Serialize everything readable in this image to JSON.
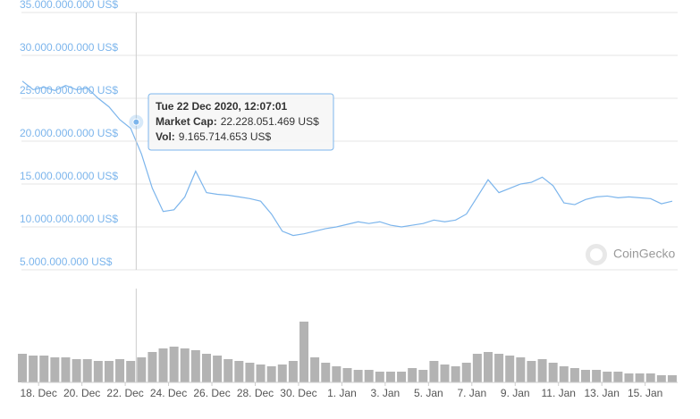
{
  "chart_data": [
    {
      "type": "line",
      "watermark": "CoinGecko",
      "xlim": [
        "2020-12-17T05:00",
        "2021-01-16T12:00"
      ],
      "ylim": [
        5000000000,
        35000000000
      ],
      "yticks": [
        {
          "value": 5000000000,
          "label": "5.000.000.000 US$"
        },
        {
          "value": 10000000000,
          "label": "10.000.000.000 US$"
        },
        {
          "value": 15000000000,
          "label": "15.000.000.000 US$"
        },
        {
          "value": 20000000000,
          "label": "20.000.000.000 US$"
        },
        {
          "value": 25000000000,
          "label": "25.000.000.000 US$"
        },
        {
          "value": 30000000000,
          "label": "30.000.000.000 US$"
        },
        {
          "value": 35000000000,
          "label": "35.000.000.000 US$"
        }
      ],
      "grid": true,
      "x": [
        "2020-12-17T06:00",
        "2020-12-17T18:00",
        "2020-12-18T06:00",
        "2020-12-18T18:00",
        "2020-12-19T06:00",
        "2020-12-19T18:00",
        "2020-12-20T06:00",
        "2020-12-20T18:00",
        "2020-12-21T06:00",
        "2020-12-21T18:00",
        "2020-12-22T06:00",
        "2020-12-22T18:00",
        "2020-12-23T06:00",
        "2020-12-23T18:00",
        "2020-12-24T06:00",
        "2020-12-24T18:00",
        "2020-12-25T06:00",
        "2020-12-25T18:00",
        "2020-12-26T06:00",
        "2020-12-26T18:00",
        "2020-12-27T06:00",
        "2020-12-27T18:00",
        "2020-12-28T06:00",
        "2020-12-28T18:00",
        "2020-12-29T06:00",
        "2020-12-29T18:00",
        "2020-12-30T06:00",
        "2020-12-30T18:00",
        "2020-12-31T06:00",
        "2020-12-31T18:00",
        "2021-01-01T06:00",
        "2021-01-01T18:00",
        "2021-01-02T06:00",
        "2021-01-02T18:00",
        "2021-01-03T06:00",
        "2021-01-03T18:00",
        "2021-01-04T06:00",
        "2021-01-04T18:00",
        "2021-01-05T06:00",
        "2021-01-05T18:00",
        "2021-01-06T06:00",
        "2021-01-06T18:00",
        "2021-01-07T06:00",
        "2021-01-07T18:00",
        "2021-01-08T06:00",
        "2021-01-08T18:00",
        "2021-01-09T06:00",
        "2021-01-09T18:00",
        "2021-01-10T06:00",
        "2021-01-10T18:00",
        "2021-01-11T06:00",
        "2021-01-11T18:00",
        "2021-01-12T06:00",
        "2021-01-12T18:00",
        "2021-01-13T06:00",
        "2021-01-13T18:00",
        "2021-01-14T06:00",
        "2021-01-14T18:00",
        "2021-01-15T06:00",
        "2021-01-15T18:00",
        "2021-01-16T06:00"
      ],
      "series": [
        {
          "color": "#7cb5ec",
          "values": [
            27000000000,
            26000000000,
            26300000000,
            25900000000,
            26500000000,
            26000000000,
            26200000000,
            25000000000,
            24000000000,
            22500000000,
            21500000000,
            18500000000,
            14500000000,
            11800000000,
            12000000000,
            13500000000,
            16500000000,
            14000000000,
            13800000000,
            13700000000,
            13500000000,
            13300000000,
            13000000000,
            11500000000,
            9500000000,
            9000000000,
            9200000000,
            9500000000,
            9800000000,
            10000000000,
            10300000000,
            10600000000,
            10400000000,
            10600000000,
            10200000000,
            10000000000,
            10200000000,
            10400000000,
            10800000000,
            10600000000,
            10800000000,
            11500000000,
            13500000000,
            15500000000,
            14000000000,
            14500000000,
            15000000000,
            15200000000,
            15800000000,
            14800000000,
            12800000000,
            12600000000,
            13200000000,
            13500000000,
            13600000000,
            13400000000,
            13500000000,
            13400000000,
            13300000000,
            12700000000,
            13000000000
          ]
        }
      ],
      "tooltip": {
        "title": "Tue 22 Dec 2020, 12:07:01",
        "x": "2020-12-22T12:07:01",
        "rows": [
          {
            "name": "Market Cap:",
            "value": 22228051469,
            "label": "22.228.051.469 US$"
          },
          {
            "name": "Vol:",
            "value": 9165714653,
            "label": "9.165.714.653 US$"
          }
        ]
      }
    },
    {
      "type": "bar",
      "color": "#9a9a9a",
      "xticks": [
        {
          "value": "2020-12-18T00:00",
          "label": "18. Dec"
        },
        {
          "value": "2020-12-20T00:00",
          "label": "20. Dec"
        },
        {
          "value": "2020-12-22T00:00",
          "label": "22. Dec"
        },
        {
          "value": "2020-12-24T00:00",
          "label": "24. Dec"
        },
        {
          "value": "2020-12-26T00:00",
          "label": "26. Dec"
        },
        {
          "value": "2020-12-28T00:00",
          "label": "28. Dec"
        },
        {
          "value": "2020-12-30T00:00",
          "label": "30. Dec"
        },
        {
          "value": "2021-01-01T00:00",
          "label": "1. Jan"
        },
        {
          "value": "2021-01-03T00:00",
          "label": "3. Jan"
        },
        {
          "value": "2021-01-05T00:00",
          "label": "5. Jan"
        },
        {
          "value": "2021-01-07T00:00",
          "label": "7. Jan"
        },
        {
          "value": "2021-01-09T00:00",
          "label": "9. Jan"
        },
        {
          "value": "2021-01-11T00:00",
          "label": "11. Jan"
        },
        {
          "value": "2021-01-13T00:00",
          "label": "13. Jan"
        },
        {
          "value": "2021-01-15T00:00",
          "label": "15. Jan"
        }
      ],
      "x": [
        "2020-12-17T06:00",
        "2020-12-17T18:00",
        "2020-12-18T06:00",
        "2020-12-18T18:00",
        "2020-12-19T06:00",
        "2020-12-19T18:00",
        "2020-12-20T06:00",
        "2020-12-20T18:00",
        "2020-12-21T06:00",
        "2020-12-21T18:00",
        "2020-12-22T06:00",
        "2020-12-22T18:00",
        "2020-12-23T06:00",
        "2020-12-23T18:00",
        "2020-12-24T06:00",
        "2020-12-24T18:00",
        "2020-12-25T06:00",
        "2020-12-25T18:00",
        "2020-12-26T06:00",
        "2020-12-26T18:00",
        "2020-12-27T06:00",
        "2020-12-27T18:00",
        "2020-12-28T06:00",
        "2020-12-28T18:00",
        "2020-12-29T06:00",
        "2020-12-29T18:00",
        "2020-12-30T06:00",
        "2020-12-30T18:00",
        "2020-12-31T06:00",
        "2020-12-31T18:00",
        "2021-01-01T06:00",
        "2021-01-01T18:00",
        "2021-01-02T06:00",
        "2021-01-02T18:00",
        "2021-01-03T06:00",
        "2021-01-03T18:00",
        "2021-01-04T06:00",
        "2021-01-04T18:00",
        "2021-01-05T06:00",
        "2021-01-05T18:00",
        "2021-01-06T06:00",
        "2021-01-06T18:00",
        "2021-01-07T06:00",
        "2021-01-07T18:00",
        "2021-01-08T06:00",
        "2021-01-08T18:00",
        "2021-01-09T06:00",
        "2021-01-09T18:00",
        "2021-01-10T06:00",
        "2021-01-10T18:00",
        "2021-01-11T06:00",
        "2021-01-11T18:00",
        "2021-01-12T06:00",
        "2021-01-12T18:00",
        "2021-01-13T06:00",
        "2021-01-13T18:00",
        "2021-01-14T06:00",
        "2021-01-14T18:00",
        "2021-01-15T06:00",
        "2021-01-15T18:00",
        "2021-01-16T06:00"
      ],
      "values": [
        16000000000,
        15000000000,
        15000000000,
        14000000000,
        14000000000,
        13000000000,
        13000000000,
        12000000000,
        12000000000,
        13000000000,
        12000000000,
        14000000000,
        17000000000,
        19000000000,
        20000000000,
        19000000000,
        18000000000,
        16000000000,
        15000000000,
        13000000000,
        12000000000,
        11000000000,
        10000000000,
        9000000000,
        10000000000,
        12000000000,
        34000000000,
        14000000000,
        11000000000,
        9000000000,
        8000000000,
        7000000000,
        7000000000,
        6000000000,
        6000000000,
        6000000000,
        8000000000,
        7000000000,
        12000000000,
        10000000000,
        9000000000,
        11000000000,
        16000000000,
        17000000000,
        16000000000,
        15000000000,
        14000000000,
        12000000000,
        13000000000,
        11000000000,
        9000000000,
        8000000000,
        7000000000,
        7000000000,
        6000000000,
        6000000000,
        5000000000,
        5000000000,
        5000000000,
        4000000000,
        4000000000
      ]
    }
  ]
}
